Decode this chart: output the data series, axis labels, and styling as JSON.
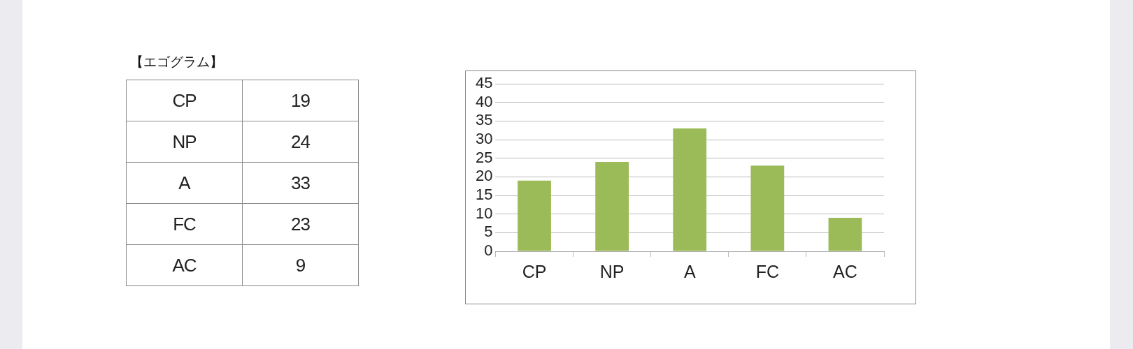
{
  "chart_data": [
    {
      "type": "other",
      "title": "【エゴグラム】",
      "categories": [
        "CP",
        "NP",
        "A",
        "FC",
        "AC"
      ],
      "values": [
        19,
        24,
        33,
        23,
        9
      ],
      "data_labels": true
    },
    {
      "type": "bar",
      "categories": [
        "CP",
        "NP",
        "A",
        "FC",
        "AC"
      ],
      "values": [
        19,
        24,
        33,
        23,
        9
      ],
      "color": "#9bbb59",
      "ylim": [
        0,
        45
      ],
      "yticks": [
        0,
        5,
        10,
        15,
        20,
        25,
        30,
        35,
        40,
        45
      ],
      "grid": "y",
      "legend": false
    }
  ]
}
